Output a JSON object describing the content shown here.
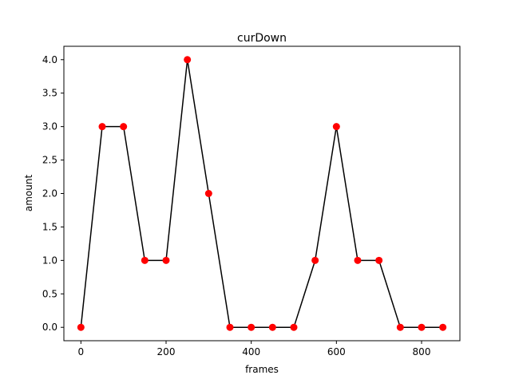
{
  "chart_data": {
    "type": "line",
    "title": "curDown",
    "xlabel": "frames",
    "ylabel": "amount",
    "xlim": [
      -40,
      890
    ],
    "ylim": [
      -0.2,
      4.2
    ],
    "x_ticks": [
      0,
      200,
      400,
      600,
      800
    ],
    "y_ticks": [
      0.0,
      0.5,
      1.0,
      1.5,
      2.0,
      2.5,
      3.0,
      3.5,
      4.0
    ],
    "x_tick_labels": [
      "0",
      "200",
      "400",
      "600",
      "800"
    ],
    "y_tick_labels": [
      "0.0",
      "0.5",
      "1.0",
      "1.5",
      "2.0",
      "2.5",
      "3.0",
      "3.5",
      "4.0"
    ],
    "grid": false,
    "series": [
      {
        "x": [
          0,
          50,
          100,
          150,
          200,
          250,
          300,
          350,
          400,
          450,
          500,
          550,
          600,
          650,
          700,
          750,
          800,
          850
        ],
        "y": [
          0,
          3,
          3,
          1,
          1,
          4,
          2,
          0,
          0,
          0,
          0,
          1,
          3,
          1,
          1,
          0,
          0,
          0
        ],
        "line_color": "#000000",
        "marker_color": "#ff0000"
      }
    ]
  }
}
